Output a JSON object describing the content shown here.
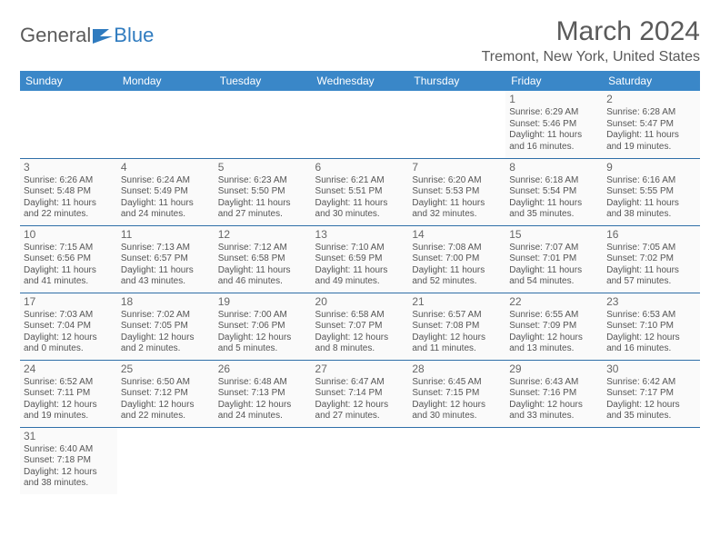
{
  "logo": {
    "text1": "General",
    "text2": "Blue"
  },
  "title": "March 2024",
  "location": "Tremont, New York, United States",
  "colors": {
    "header_bg": "#3a87c8",
    "header_text": "#ffffff",
    "border": "#2f6fa8",
    "cell_bg": "#fafafa",
    "text": "#555555",
    "title_text": "#5a5a5a"
  },
  "dayHeaders": [
    "Sunday",
    "Monday",
    "Tuesday",
    "Wednesday",
    "Thursday",
    "Friday",
    "Saturday"
  ],
  "weeks": [
    [
      null,
      null,
      null,
      null,
      null,
      {
        "n": "1",
        "sr": "Sunrise: 6:29 AM",
        "ss": "Sunset: 5:46 PM",
        "dl": "Daylight: 11 hours and 16 minutes."
      },
      {
        "n": "2",
        "sr": "Sunrise: 6:28 AM",
        "ss": "Sunset: 5:47 PM",
        "dl": "Daylight: 11 hours and 19 minutes."
      }
    ],
    [
      {
        "n": "3",
        "sr": "Sunrise: 6:26 AM",
        "ss": "Sunset: 5:48 PM",
        "dl": "Daylight: 11 hours and 22 minutes."
      },
      {
        "n": "4",
        "sr": "Sunrise: 6:24 AM",
        "ss": "Sunset: 5:49 PM",
        "dl": "Daylight: 11 hours and 24 minutes."
      },
      {
        "n": "5",
        "sr": "Sunrise: 6:23 AM",
        "ss": "Sunset: 5:50 PM",
        "dl": "Daylight: 11 hours and 27 minutes."
      },
      {
        "n": "6",
        "sr": "Sunrise: 6:21 AM",
        "ss": "Sunset: 5:51 PM",
        "dl": "Daylight: 11 hours and 30 minutes."
      },
      {
        "n": "7",
        "sr": "Sunrise: 6:20 AM",
        "ss": "Sunset: 5:53 PM",
        "dl": "Daylight: 11 hours and 32 minutes."
      },
      {
        "n": "8",
        "sr": "Sunrise: 6:18 AM",
        "ss": "Sunset: 5:54 PM",
        "dl": "Daylight: 11 hours and 35 minutes."
      },
      {
        "n": "9",
        "sr": "Sunrise: 6:16 AM",
        "ss": "Sunset: 5:55 PM",
        "dl": "Daylight: 11 hours and 38 minutes."
      }
    ],
    [
      {
        "n": "10",
        "sr": "Sunrise: 7:15 AM",
        "ss": "Sunset: 6:56 PM",
        "dl": "Daylight: 11 hours and 41 minutes."
      },
      {
        "n": "11",
        "sr": "Sunrise: 7:13 AM",
        "ss": "Sunset: 6:57 PM",
        "dl": "Daylight: 11 hours and 43 minutes."
      },
      {
        "n": "12",
        "sr": "Sunrise: 7:12 AM",
        "ss": "Sunset: 6:58 PM",
        "dl": "Daylight: 11 hours and 46 minutes."
      },
      {
        "n": "13",
        "sr": "Sunrise: 7:10 AM",
        "ss": "Sunset: 6:59 PM",
        "dl": "Daylight: 11 hours and 49 minutes."
      },
      {
        "n": "14",
        "sr": "Sunrise: 7:08 AM",
        "ss": "Sunset: 7:00 PM",
        "dl": "Daylight: 11 hours and 52 minutes."
      },
      {
        "n": "15",
        "sr": "Sunrise: 7:07 AM",
        "ss": "Sunset: 7:01 PM",
        "dl": "Daylight: 11 hours and 54 minutes."
      },
      {
        "n": "16",
        "sr": "Sunrise: 7:05 AM",
        "ss": "Sunset: 7:02 PM",
        "dl": "Daylight: 11 hours and 57 minutes."
      }
    ],
    [
      {
        "n": "17",
        "sr": "Sunrise: 7:03 AM",
        "ss": "Sunset: 7:04 PM",
        "dl": "Daylight: 12 hours and 0 minutes."
      },
      {
        "n": "18",
        "sr": "Sunrise: 7:02 AM",
        "ss": "Sunset: 7:05 PM",
        "dl": "Daylight: 12 hours and 2 minutes."
      },
      {
        "n": "19",
        "sr": "Sunrise: 7:00 AM",
        "ss": "Sunset: 7:06 PM",
        "dl": "Daylight: 12 hours and 5 minutes."
      },
      {
        "n": "20",
        "sr": "Sunrise: 6:58 AM",
        "ss": "Sunset: 7:07 PM",
        "dl": "Daylight: 12 hours and 8 minutes."
      },
      {
        "n": "21",
        "sr": "Sunrise: 6:57 AM",
        "ss": "Sunset: 7:08 PM",
        "dl": "Daylight: 12 hours and 11 minutes."
      },
      {
        "n": "22",
        "sr": "Sunrise: 6:55 AM",
        "ss": "Sunset: 7:09 PM",
        "dl": "Daylight: 12 hours and 13 minutes."
      },
      {
        "n": "23",
        "sr": "Sunrise: 6:53 AM",
        "ss": "Sunset: 7:10 PM",
        "dl": "Daylight: 12 hours and 16 minutes."
      }
    ],
    [
      {
        "n": "24",
        "sr": "Sunrise: 6:52 AM",
        "ss": "Sunset: 7:11 PM",
        "dl": "Daylight: 12 hours and 19 minutes."
      },
      {
        "n": "25",
        "sr": "Sunrise: 6:50 AM",
        "ss": "Sunset: 7:12 PM",
        "dl": "Daylight: 12 hours and 22 minutes."
      },
      {
        "n": "26",
        "sr": "Sunrise: 6:48 AM",
        "ss": "Sunset: 7:13 PM",
        "dl": "Daylight: 12 hours and 24 minutes."
      },
      {
        "n": "27",
        "sr": "Sunrise: 6:47 AM",
        "ss": "Sunset: 7:14 PM",
        "dl": "Daylight: 12 hours and 27 minutes."
      },
      {
        "n": "28",
        "sr": "Sunrise: 6:45 AM",
        "ss": "Sunset: 7:15 PM",
        "dl": "Daylight: 12 hours and 30 minutes."
      },
      {
        "n": "29",
        "sr": "Sunrise: 6:43 AM",
        "ss": "Sunset: 7:16 PM",
        "dl": "Daylight: 12 hours and 33 minutes."
      },
      {
        "n": "30",
        "sr": "Sunrise: 6:42 AM",
        "ss": "Sunset: 7:17 PM",
        "dl": "Daylight: 12 hours and 35 minutes."
      }
    ],
    [
      {
        "n": "31",
        "sr": "Sunrise: 6:40 AM",
        "ss": "Sunset: 7:18 PM",
        "dl": "Daylight: 12 hours and 38 minutes."
      },
      null,
      null,
      null,
      null,
      null,
      null
    ]
  ]
}
